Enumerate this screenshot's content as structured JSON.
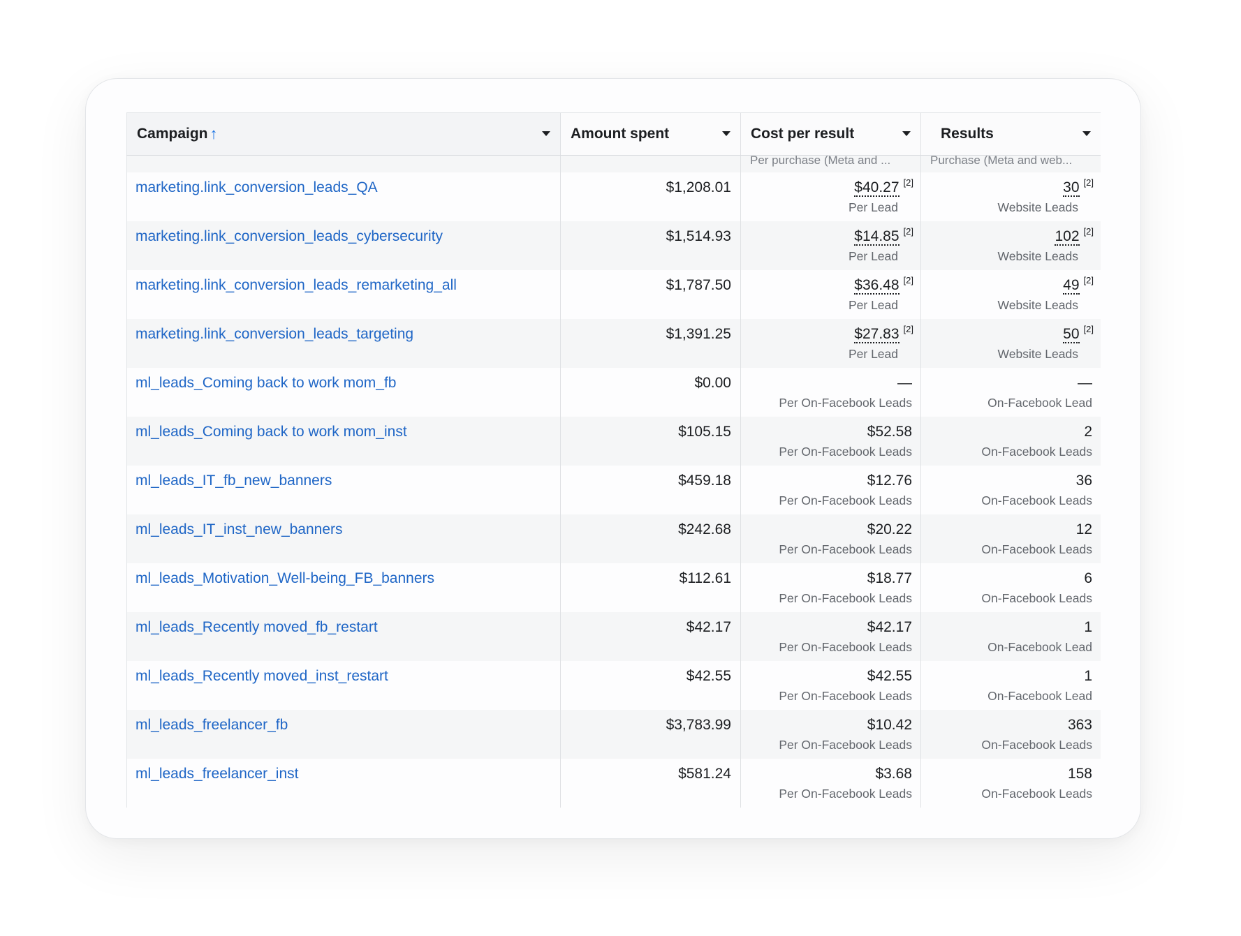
{
  "table": {
    "columns": [
      {
        "label": "Campaign",
        "sub": ""
      },
      {
        "label": "Amount spent",
        "sub": ""
      },
      {
        "label": "Cost per result",
        "sub": "Per purchase (Meta and ..."
      },
      {
        "label": "Results",
        "sub": "Purchase (Meta and web..."
      }
    ],
    "rows": [
      {
        "campaign": "marketing.link_conversion_leads_QA",
        "amount": "$1,208.01",
        "cost": "$40.27",
        "cost_note": "[2]",
        "cost_sub": "Per Lead",
        "result": "30",
        "result_note": "[2]",
        "result_sub": "Website Leads"
      },
      {
        "campaign": "marketing.link_conversion_leads_cybersecurity",
        "amount": "$1,514.93",
        "cost": "$14.85",
        "cost_note": "[2]",
        "cost_sub": "Per Lead",
        "result": "102",
        "result_note": "[2]",
        "result_sub": "Website Leads"
      },
      {
        "campaign": "marketing.link_conversion_leads_remarketing_all",
        "amount": "$1,787.50",
        "cost": "$36.48",
        "cost_note": "[2]",
        "cost_sub": "Per Lead",
        "result": "49",
        "result_note": "[2]",
        "result_sub": "Website Leads"
      },
      {
        "campaign": "marketing.link_conversion_leads_targeting",
        "amount": "$1,391.25",
        "cost": "$27.83",
        "cost_note": "[2]",
        "cost_sub": "Per Lead",
        "result": "50",
        "result_note": "[2]",
        "result_sub": "Website Leads"
      },
      {
        "campaign": "ml_leads_Coming back to work mom_fb",
        "amount": "$0.00",
        "cost": "—",
        "cost_sub": "Per On-Facebook Leads",
        "result": "—",
        "result_sub": "On-Facebook Lead"
      },
      {
        "campaign": "ml_leads_Coming back to work mom_inst",
        "amount": "$105.15",
        "cost": "$52.58",
        "cost_sub": "Per On-Facebook Leads",
        "result": "2",
        "result_sub": "On-Facebook Leads"
      },
      {
        "campaign": "ml_leads_IT_fb_new_banners",
        "amount": "$459.18",
        "cost": "$12.76",
        "cost_sub": "Per On-Facebook Leads",
        "result": "36",
        "result_sub": "On-Facebook Leads"
      },
      {
        "campaign": "ml_leads_IT_inst_new_banners",
        "amount": "$242.68",
        "cost": "$20.22",
        "cost_sub": "Per On-Facebook Leads",
        "result": "12",
        "result_sub": "On-Facebook Leads"
      },
      {
        "campaign": "ml_leads_Motivation_Well-being_FB_banners",
        "amount": "$112.61",
        "cost": "$18.77",
        "cost_sub": "Per On-Facebook Leads",
        "result": "6",
        "result_sub": "On-Facebook Leads"
      },
      {
        "campaign": "ml_leads_Recently moved_fb_restart",
        "amount": "$42.17",
        "cost": "$42.17",
        "cost_sub": "Per On-Facebook Leads",
        "result": "1",
        "result_sub": "On-Facebook Lead"
      },
      {
        "campaign": "ml_leads_Recently moved_inst_restart",
        "amount": "$42.55",
        "cost": "$42.55",
        "cost_sub": "Per On-Facebook Leads",
        "result": "1",
        "result_sub": "On-Facebook Lead"
      },
      {
        "campaign": "ml_leads_freelancer_fb",
        "amount": "$3,783.99",
        "cost": "$10.42",
        "cost_sub": "Per On-Facebook Leads",
        "result": "363",
        "result_sub": "On-Facebook Leads"
      },
      {
        "campaign": "ml_leads_freelancer_inst",
        "amount": "$581.24",
        "cost": "$3.68",
        "cost_sub": "Per On-Facebook Leads",
        "result": "158",
        "result_sub": "On-Facebook Leads"
      }
    ]
  },
  "colors": {
    "link": "#1f66c6",
    "sort_arrow": "#1b74e4",
    "row_alt": "#f5f6f7"
  }
}
